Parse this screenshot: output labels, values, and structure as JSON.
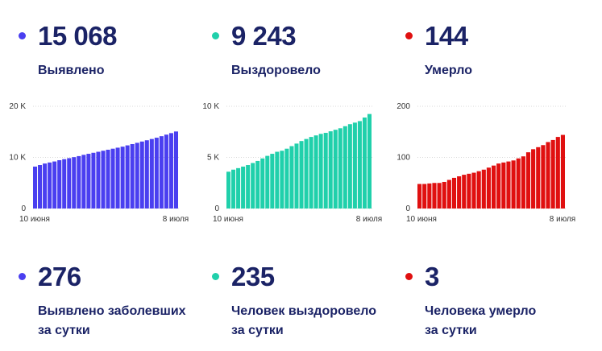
{
  "panels": [
    {
      "id": "detected",
      "color": "#4a3ff0",
      "total": "15 068",
      "total_label": "Выявлено",
      "daily": "276",
      "daily_label_line1": "Выявлено заболевших",
      "daily_label_line2": "за сутки"
    },
    {
      "id": "recovered",
      "color": "#20d0ab",
      "total": "9 243",
      "total_label": "Выздоровело",
      "daily": "235",
      "daily_label_line1": "Человек выздоровело",
      "daily_label_line2": "за сутки"
    },
    {
      "id": "died",
      "color": "#e01010",
      "total": "144",
      "total_label": "Умерло",
      "daily": "3",
      "daily_label_line1": "Человека умерло",
      "daily_label_line2": "за сутки"
    }
  ],
  "chart_data": [
    {
      "type": "bar",
      "x_start_label": "10 июня",
      "x_end_label": "8 июля",
      "ylim": [
        0,
        20000
      ],
      "yticks": [
        {
          "value": 0,
          "label": "0"
        },
        {
          "value": 10000,
          "label": "10 K"
        },
        {
          "value": 20000,
          "label": "20 K"
        }
      ],
      "values": [
        8200,
        8500,
        8800,
        9000,
        9200,
        9450,
        9650,
        9850,
        10050,
        10250,
        10500,
        10700,
        10900,
        11100,
        11300,
        11500,
        11700,
        11900,
        12100,
        12350,
        12600,
        12850,
        13100,
        13350,
        13600,
        13850,
        14150,
        14450,
        14750,
        15068
      ]
    },
    {
      "type": "bar",
      "x_start_label": "10 июня",
      "x_end_label": "8 июля",
      "ylim": [
        0,
        10000
      ],
      "yticks": [
        {
          "value": 0,
          "label": "0"
        },
        {
          "value": 5000,
          "label": "5 K"
        },
        {
          "value": 10000,
          "label": "10 K"
        }
      ],
      "values": [
        3600,
        3800,
        3950,
        4100,
        4250,
        4450,
        4650,
        4900,
        5150,
        5350,
        5550,
        5650,
        5850,
        6100,
        6350,
        6600,
        6800,
        7000,
        7150,
        7300,
        7400,
        7550,
        7700,
        7850,
        8050,
        8250,
        8400,
        8550,
        8900,
        9243
      ]
    },
    {
      "type": "bar",
      "x_start_label": "10 июня",
      "x_end_label": "8 июля",
      "ylim": [
        0,
        200
      ],
      "yticks": [
        {
          "value": 0,
          "label": "0"
        },
        {
          "value": 100,
          "label": "100"
        },
        {
          "value": 200,
          "label": "200"
        }
      ],
      "values": [
        48,
        48,
        49,
        50,
        50,
        52,
        56,
        60,
        63,
        66,
        68,
        70,
        73,
        76,
        80,
        84,
        88,
        90,
        92,
        94,
        98,
        102,
        110,
        116,
        120,
        124,
        130,
        134,
        140,
        144
      ]
    }
  ]
}
